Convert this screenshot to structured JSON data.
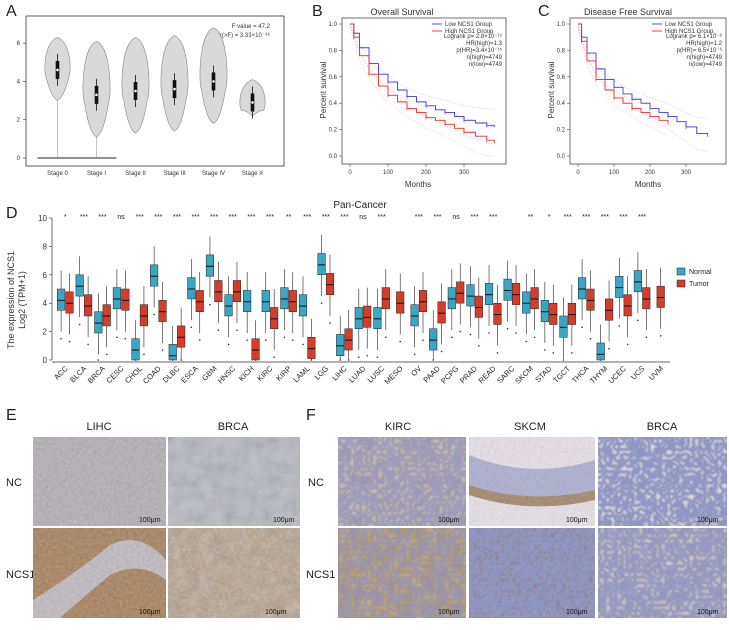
{
  "chart_data": [
    {
      "panel": "A",
      "type": "violin",
      "categories": [
        "Stage 0",
        "Stage I",
        "Stage II",
        "Stage III",
        "Stage IV",
        "Stage X"
      ],
      "medians": [
        4.6,
        3.3,
        3.5,
        3.6,
        4.0,
        2.9
      ],
      "ylim": [
        0,
        7
      ],
      "yticks": [
        0,
        2,
        4,
        6
      ],
      "annotation_lines": [
        "F value = 47.2",
        "Pr(>F) = 3.33×10⁻⁴⁶"
      ]
    },
    {
      "panel": "B",
      "type": "line",
      "title": "Overall Survival",
      "xlabel": "Months",
      "ylabel": "Percent survival",
      "xlim": [
        0,
        400
      ],
      "ylim": [
        0,
        1
      ],
      "xticks": [
        0,
        100,
        200,
        300
      ],
      "yticks": [
        0.0,
        0.2,
        0.4,
        0.6,
        0.8,
        1.0
      ],
      "legend": [
        "Low NCS1 Group",
        "High NCS1 Group"
      ],
      "stats": [
        "Logrank p= 2.8×10⁻¹⁵",
        "HR(high)=1.3",
        "p(HR)=3.4×10⁻¹⁵",
        "n(high)=4749",
        "n(low)=4749"
      ],
      "series": [
        {
          "name": "Low NCS1 Group",
          "color": "#3b3bd6",
          "x": [
            0,
            10,
            25,
            50,
            75,
            100,
            125,
            150,
            175,
            200,
            225,
            250,
            275,
            300,
            330,
            360,
            380
          ],
          "y": [
            1.0,
            0.93,
            0.82,
            0.7,
            0.62,
            0.56,
            0.5,
            0.45,
            0.41,
            0.38,
            0.35,
            0.33,
            0.3,
            0.27,
            0.25,
            0.23,
            0.22
          ]
        },
        {
          "name": "High NCS1 Group",
          "color": "#e0302a",
          "x": [
            0,
            10,
            25,
            50,
            75,
            100,
            125,
            150,
            175,
            200,
            225,
            250,
            275,
            300,
            330,
            360,
            380
          ],
          "y": [
            1.0,
            0.9,
            0.76,
            0.62,
            0.53,
            0.46,
            0.41,
            0.36,
            0.33,
            0.29,
            0.27,
            0.24,
            0.21,
            0.18,
            0.15,
            0.12,
            0.1
          ]
        }
      ]
    },
    {
      "panel": "C",
      "type": "line",
      "title": "Disease Free Survival",
      "xlabel": "Months",
      "ylabel": "Percent survival",
      "xlim": [
        0,
        400
      ],
      "ylim": [
        0,
        1
      ],
      "xticks": [
        0,
        100,
        200,
        300
      ],
      "yticks": [
        0.0,
        0.2,
        0.4,
        0.6,
        0.8,
        1.0
      ],
      "legend": [
        "Low NCS1 Group",
        "High NCS1 Group"
      ],
      "stats": [
        "Logrank p= 6.1×10⁻⁶",
        "HR(high)=1.2",
        "p(HR)= 6.5×10⁻⁶",
        "n(high)=4749",
        "n(low)=4749"
      ],
      "series": [
        {
          "name": "Low NCS1 Group",
          "color": "#3b3bd6",
          "x": [
            0,
            10,
            25,
            50,
            75,
            100,
            125,
            150,
            175,
            200,
            225,
            250,
            275,
            300,
            330,
            360
          ],
          "y": [
            1.0,
            0.9,
            0.78,
            0.66,
            0.58,
            0.52,
            0.47,
            0.43,
            0.4,
            0.36,
            0.33,
            0.3,
            0.26,
            0.22,
            0.17,
            0.16
          ]
        },
        {
          "name": "High NCS1 Group",
          "color": "#e0302a",
          "x": [
            0,
            10,
            25,
            50,
            75,
            100,
            125,
            150,
            175,
            200,
            225,
            250
          ],
          "y": [
            1.0,
            0.87,
            0.72,
            0.58,
            0.5,
            0.44,
            0.4,
            0.36,
            0.33,
            0.3,
            0.27,
            0.25
          ]
        }
      ]
    },
    {
      "panel": "D",
      "type": "box",
      "title": "Pan-Cancer",
      "ylabel_line1": "The expression of NCS1",
      "ylabel_line2": "Log2 (TPM+1)",
      "ylim": [
        0,
        10
      ],
      "yticks": [
        0,
        2,
        4,
        6,
        8,
        10
      ],
      "legend": [
        "Normal",
        "Tumor"
      ],
      "colors": {
        "normal": "#3aa6c4",
        "tumor": "#d43d2a"
      },
      "categories": [
        "ACC",
        "BLCA",
        "BRCA",
        "CESC",
        "CHOL",
        "COAD",
        "DLBC",
        "ESCA",
        "GBM",
        "HNSC",
        "KICH",
        "KIRC",
        "KIRP",
        "LAML",
        "LGG",
        "LIHC",
        "LUAD",
        "LUSC",
        "MESO",
        "OV",
        "PAAD",
        "PCPG",
        "PRAD",
        "READ",
        "SARC",
        "SKCM",
        "STAD",
        "TGCT",
        "THCA",
        "THYM",
        "UCEC",
        "UCS",
        "UVM"
      ],
      "significance": [
        "*",
        "***",
        "***",
        "ns",
        "***",
        "***",
        "***",
        "***",
        "***",
        "***",
        "***",
        "***",
        "**",
        "***",
        "***",
        "***",
        "ns",
        "***",
        "",
        "***",
        "***",
        "ns",
        "***",
        "***",
        "",
        "**",
        "*",
        "***",
        "***",
        "***",
        "***",
        "***",
        ""
      ],
      "normal_medians": [
        4.2,
        5.2,
        2.6,
        4.3,
        0.7,
        5.9,
        0.3,
        5.0,
        6.6,
        3.8,
        4.1,
        4.1,
        4.3,
        3.8,
        6.7,
        1.0,
        2.9,
        2.9,
        null,
        3.1,
        1.4,
        4.3,
        4.5,
        4.6,
        4.9,
        4.0,
        3.4,
        2.3,
        5.0,
        0.4,
        5.1,
        5.5,
        null
      ],
      "tumor_medians": [
        4.0,
        3.8,
        3.1,
        4.2,
        3.1,
        3.4,
        1.6,
        4.1,
        4.8,
        4.8,
        0.7,
        2.9,
        4.1,
        0.8,
        5.3,
        1.4,
        3.0,
        4.3,
        4.0,
        4.1,
        3.3,
        4.7,
        3.7,
        3.2,
        4.6,
        4.3,
        3.2,
        3.2,
        4.2,
        3.5,
        3.8,
        4.3,
        4.4
      ]
    }
  ],
  "panels": {
    "A": "A",
    "B": "B",
    "C": "C",
    "D": "D",
    "E": "E",
    "F": "F"
  },
  "ihc": {
    "e_cols": [
      "LIHC",
      "BRCA"
    ],
    "f_cols": [
      "KIRC",
      "SKCM",
      "BRCA"
    ],
    "rows": [
      "NC",
      "NCS1"
    ],
    "scale_label": "100μm"
  }
}
